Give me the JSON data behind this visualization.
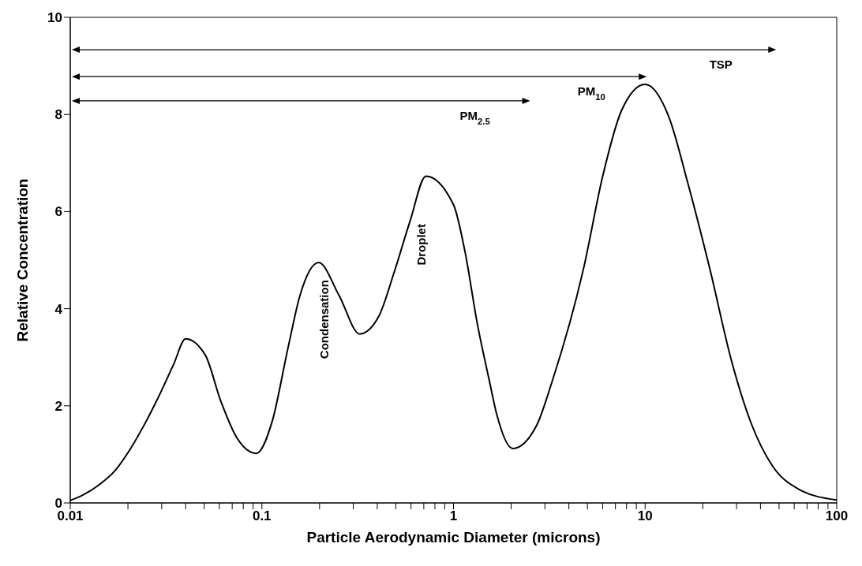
{
  "chart_data": {
    "type": "line",
    "xlabel": "Particle Aerodynamic Diameter (microns)",
    "ylabel": "Relative Concentration",
    "log": "x",
    "x": [
      0.01,
      0.0116,
      0.0141,
      0.017,
      0.0205,
      0.0248,
      0.03,
      0.0346,
      0.04,
      0.0506,
      0.061,
      0.0738,
      0.0935,
      0.113,
      0.137,
      0.158,
      0.198,
      0.253,
      0.324,
      0.406,
      0.491,
      0.594,
      0.718,
      1.0,
      1.15,
      1.33,
      1.53,
      1.68,
      2.04,
      2.71,
      3.27,
      4.78,
      6.0,
      7.53,
      10,
      13.3,
      16.7,
      21.7,
      28.4,
      35.6,
      46.4,
      62.8,
      100
    ],
    "series": [
      {
        "color": "#000000",
        "values": [
          0.05,
          0.16,
          0.37,
          0.65,
          1.1,
          1.67,
          2.32,
          2.85,
          3.38,
          3.05,
          2.1,
          1.35,
          1.02,
          1.67,
          3.2,
          4.27,
          4.95,
          4.27,
          3.48,
          3.83,
          4.76,
          5.81,
          6.73,
          6.14,
          5.16,
          3.7,
          2.56,
          1.83,
          1.12,
          1.59,
          2.5,
          4.84,
          6.72,
          8.08,
          8.62,
          7.95,
          6.59,
          4.84,
          2.89,
          1.66,
          0.75,
          0.29,
          0.06
        ]
      }
    ],
    "xlim": [
      0.01,
      100
    ],
    "xticks": [
      0.01,
      {
        "value": 0.02,
        "label": null
      },
      {
        "value": 0.03,
        "label": null
      },
      {
        "value": 0.04,
        "label": null
      },
      {
        "value": 0.05,
        "label": null
      },
      {
        "value": 0.06,
        "label": null
      },
      {
        "value": 0.07,
        "label": null
      },
      {
        "value": 0.08,
        "label": null
      },
      {
        "value": 0.09,
        "label": null
      },
      0.1,
      {
        "value": 0.2,
        "label": null
      },
      {
        "value": 0.3,
        "label": null
      },
      {
        "value": 0.4,
        "label": null
      },
      {
        "value": 0.5,
        "label": null
      },
      {
        "value": 0.6,
        "label": null
      },
      {
        "value": 0.7,
        "label": null
      },
      {
        "value": 0.8,
        "label": null
      },
      {
        "value": 0.9,
        "label": null
      },
      1,
      {
        "value": 2,
        "label": null
      },
      {
        "value": 3,
        "label": null
      },
      {
        "value": 4,
        "label": null
      },
      {
        "value": 5,
        "label": null
      },
      {
        "value": 6,
        "label": null
      },
      {
        "value": 7,
        "label": null
      },
      {
        "value": 8,
        "label": null
      },
      {
        "value": 9,
        "label": null
      },
      10,
      {
        "value": 20,
        "label": null
      },
      {
        "value": 30,
        "label": null
      },
      {
        "value": 40,
        "label": null
      },
      {
        "value": 50,
        "label": null
      },
      {
        "value": 60,
        "label": null
      },
      {
        "value": 70,
        "label": null
      },
      {
        "value": 80,
        "label": null
      },
      {
        "value": 90,
        "label": null
      },
      100
    ],
    "ylim": [
      0,
      10
    ],
    "yticks": [
      0,
      2,
      4,
      6,
      8,
      10
    ],
    "grid": false,
    "legend": false,
    "marker": "none",
    "line_style": "solid",
    "annotations": [
      "TSP",
      "PM$_{10}$",
      "PM$_{2.5}$",
      "Condensation",
      "Droplet"
    ]
  }
}
